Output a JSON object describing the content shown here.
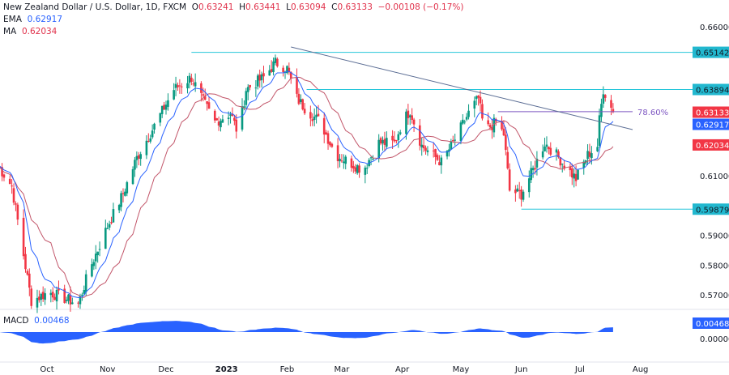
{
  "header": {
    "symbol": "New Zealand Dollar / U.S. Dollar, 1D, FXCM",
    "o_label": "O",
    "o": "0.63241",
    "h_label": "H",
    "h": "0.63441",
    "l_label": "L",
    "l": "0.63094",
    "c_label": "C",
    "c": "0.63133",
    "change": "−0.00108 (−0.17%)"
  },
  "indicators": {
    "ema_label": "EMA",
    "ema": "0.62917",
    "ma_label": "MA",
    "ma": "0.62034",
    "macd_label": "MACD",
    "macd": "0.00468"
  },
  "chart_data": {
    "type": "candlestick",
    "ylim": [
      0.5635,
      0.6625
    ],
    "yticks": [
      "0.66000",
      "0.61000",
      "0.59000",
      "0.58000",
      "0.57000"
    ],
    "macd_ticks": [
      "0.00000"
    ],
    "xticks": [
      {
        "label": "Oct",
        "date": "2022-10-01"
      },
      {
        "label": "Nov",
        "date": "2022-11-01"
      },
      {
        "label": "Dec",
        "date": "2022-12-01"
      },
      {
        "label": "2023",
        "date": "2023-01-01"
      },
      {
        "label": "Feb",
        "date": "2023-02-01"
      },
      {
        "label": "Mar",
        "date": "2023-03-01"
      },
      {
        "label": "Apr",
        "date": "2023-04-01"
      },
      {
        "label": "May",
        "date": "2023-05-01"
      },
      {
        "label": "Jun",
        "date": "2023-06-01"
      },
      {
        "label": "Jul",
        "date": "2023-07-01"
      },
      {
        "label": "Aug",
        "date": "2023-08-01"
      }
    ],
    "closes": [
      [
        "2022-09-06",
        0.6133
      ],
      [
        "2022-09-13",
        0.6065
      ],
      [
        "2022-09-23",
        0.568
      ],
      [
        "2022-10-02",
        0.571
      ],
      [
        "2022-10-17",
        0.567
      ],
      [
        "2022-10-23",
        0.579
      ],
      [
        "2022-11-01",
        0.593
      ],
      [
        "2022-11-09",
        0.604
      ],
      [
        "2022-11-16",
        0.616
      ],
      [
        "2022-11-24",
        0.6255
      ],
      [
        "2022-12-05",
        0.639
      ],
      [
        "2022-12-14",
        0.643
      ],
      [
        "2022-12-20",
        0.635
      ],
      [
        "2022-12-26",
        0.628
      ],
      [
        "2023-01-03",
        0.631
      ],
      [
        "2023-01-07",
        0.624
      ],
      [
        "2023-01-11",
        0.639
      ],
      [
        "2023-01-20",
        0.643
      ],
      [
        "2023-01-26",
        0.648
      ],
      [
        "2023-02-01",
        0.646
      ],
      [
        "2023-02-06",
        0.636
      ],
      [
        "2023-02-11",
        0.632
      ],
      [
        "2023-02-18",
        0.628
      ],
      [
        "2023-02-26",
        0.617
      ],
      [
        "2023-03-12",
        0.612
      ],
      [
        "2023-03-20",
        0.621
      ],
      [
        "2023-03-28",
        0.621
      ],
      [
        "2023-04-01",
        0.628
      ],
      [
        "2023-04-05",
        0.632
      ],
      [
        "2023-04-11",
        0.62
      ],
      [
        "2023-04-21",
        0.6145
      ],
      [
        "2023-04-27",
        0.621
      ],
      [
        "2023-05-05",
        0.631
      ],
      [
        "2023-05-10",
        0.636
      ],
      [
        "2023-05-13",
        0.625
      ],
      [
        "2023-05-19",
        0.628
      ],
      [
        "2023-05-23",
        0.624
      ],
      [
        "2023-05-26",
        0.605
      ],
      [
        "2023-06-01",
        0.6038
      ],
      [
        "2023-06-07",
        0.612
      ],
      [
        "2023-06-13",
        0.621
      ],
      [
        "2023-06-19",
        0.617
      ],
      [
        "2023-06-25",
        0.612
      ],
      [
        "2023-06-29",
        0.609
      ],
      [
        "2023-07-05",
        0.617
      ],
      [
        "2023-07-10",
        0.62
      ],
      [
        "2023-07-11",
        0.6287
      ],
      [
        "2023-07-13",
        0.639
      ],
      [
        "2023-07-18",
        0.63133
      ]
    ],
    "levels": [
      {
        "value": 0.65142,
        "label": "0.65142",
        "from": "2022-12-14"
      },
      {
        "value": 0.63894,
        "label": "0.63894",
        "from": "2023-02-11"
      },
      {
        "value": 0.59879,
        "label": "0.59879",
        "from": "2023-06-01"
      }
    ],
    "fib": {
      "value": 0.6315,
      "label": "78.60%",
      "from": "2023-05-20",
      "to": "2023-07-28"
    },
    "trendline": [
      [
        "2023-02-03",
        0.6532
      ],
      [
        "2023-07-28",
        0.6255
      ]
    ],
    "price_labels": [
      {
        "label": "0.63133",
        "value": 0.63133,
        "color": "#f23645"
      },
      {
        "label": "0.62917",
        "value": 0.62917,
        "color": "#2962ff"
      },
      {
        "label": "0.62034",
        "value": 0.62034,
        "color": "#f23645"
      }
    ],
    "colors": {
      "up": "#089981",
      "down": "#f23645",
      "ema": "#2962ff",
      "ma": "#c2566a",
      "level": "#26c6da",
      "level_box": "#22b8cf",
      "trend": "#5b6d94",
      "fib": "#7e57c2",
      "macd": "#2962ff"
    }
  }
}
